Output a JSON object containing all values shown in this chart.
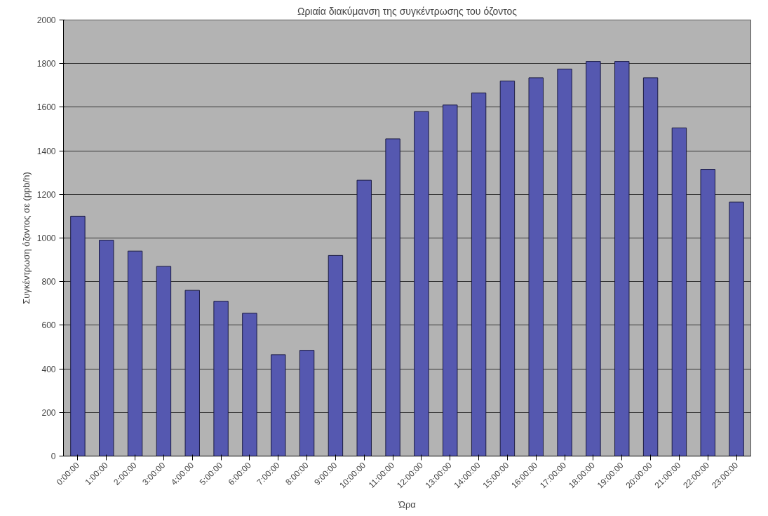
{
  "chart_data": {
    "type": "bar",
    "title": "Ωριαία διακύμανση της συγκέντρωσης του όζοντος",
    "xlabel": "Ώρα",
    "ylabel": "Συγκέντρωση όζοντος σε (ppb/h)",
    "categories": [
      "0:00:00",
      "1:00:00",
      "2:00:00",
      "3:00:00",
      "4:00:00",
      "5:00:00",
      "6:00:00",
      "7:00:00",
      "8:00:00",
      "9:00:00",
      "10:00:00",
      "11:00:00",
      "12:00:00",
      "13:00:00",
      "14:00:00",
      "15:00:00",
      "16:00:00",
      "17:00:00",
      "18:00:00",
      "19:00:00",
      "20:00:00",
      "21:00:00",
      "22:00:00",
      "23:00:00"
    ],
    "values": [
      1100,
      990,
      940,
      870,
      760,
      710,
      655,
      465,
      485,
      920,
      1265,
      1455,
      1580,
      1610,
      1665,
      1720,
      1735,
      1775,
      1810,
      1810,
      1735,
      1505,
      1315,
      1165
    ],
    "color": "#5558b0",
    "ylim": [
      0,
      2000
    ],
    "yticks": [
      0,
      200,
      400,
      600,
      800,
      1000,
      1200,
      1400,
      1600,
      1800,
      2000
    ],
    "grid": "y"
  }
}
